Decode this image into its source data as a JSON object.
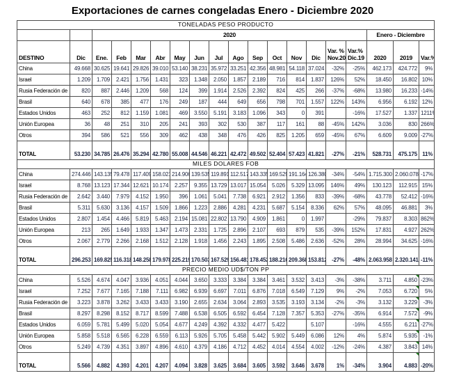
{
  "title": "Exportaciones de carnes congeladas Enero - Diciembre 2020",
  "colors": {
    "border": "#4d4d4d",
    "value_text": "#1c2440",
    "header_text": "#000000",
    "comment_marker_green": "#1e7a1e",
    "background": "#ffffff"
  },
  "table": {
    "group_header_2020": "2020",
    "group_header_enero_dic": "Enero - Diciembre",
    "columns": [
      "DESTINO",
      "Dic",
      "Ene.",
      "Feb",
      "Mar",
      "Abr",
      "May",
      "Jun",
      "Jul",
      "Ago",
      "Sep",
      "Oct",
      "Nov",
      "Dic",
      [
        "Var. %",
        "Nov.20"
      ],
      [
        "Var.%",
        "Dic.19"
      ],
      "2020",
      "2019",
      "Var.%"
    ],
    "sections": [
      {
        "title": "TONELADAS PESO PRODUCTO",
        "comment_markers_2019": false,
        "rows": [
          [
            "China",
            "49.668",
            "30.625",
            "19.641",
            "29.826",
            "39.010",
            "53.140",
            "38.231",
            "35.972",
            "33.251",
            "42.356",
            "48.981",
            "54.118",
            "37.024",
            "-32%",
            "-25%",
            "462.173",
            "424.772",
            "9%"
          ],
          [
            "Israel",
            "1.209",
            "1.709",
            "2.421",
            "1.756",
            "1.431",
            "323",
            "1.348",
            "2.050",
            "1.857",
            "2.189",
            "716",
            "814",
            "1.837",
            "126%",
            "52%",
            "18.450",
            "16.802",
            "10%"
          ],
          [
            "Rusia Federación de",
            "820",
            "887",
            "2.446",
            "1.209",
            "568",
            "124",
            "399",
            "1.914",
            "2.526",
            "2.392",
            "824",
            "425",
            "266",
            "-37%",
            "-68%",
            "13.980",
            "16.233",
            "-14%"
          ],
          [
            "Brasil",
            "640",
            "678",
            "385",
            "477",
            "176",
            "249",
            "187",
            "444",
            "649",
            "656",
            "798",
            "701",
            "1.557",
            "122%",
            "143%",
            "6.956",
            "6.192",
            "12%"
          ],
          [
            "Estados Unidos",
            "463",
            "252",
            "812",
            "1.159",
            "1.081",
            "469",
            "3.550",
            "5.191",
            "3.183",
            "1.096",
            "343",
            "0",
            "391",
            "",
            "-16%",
            "17.527",
            "1.337",
            "1211%"
          ],
          [
            "Unión Europea",
            "36",
            "48",
            "251",
            "310",
            "205",
            "241",
            "393",
            "302",
            "530",
            "387",
            "117",
            "161",
            "88",
            "-45%",
            "142%",
            "3.036",
            "830",
            "266%"
          ],
          [
            "Otros",
            "394",
            "586",
            "521",
            "556",
            "309",
            "462",
            "438",
            "348",
            "476",
            "426",
            "825",
            "1.205",
            "659",
            "-45%",
            "67%",
            "6.609",
            "9.009",
            "-27%"
          ]
        ],
        "total": [
          "TOTAL",
          "53.230",
          "34.785",
          "26.476",
          "35.294",
          "42.780",
          "55.008",
          "44.546",
          "46.221",
          "42.472",
          "49.502",
          "52.404",
          "57.423",
          "41.821",
          "-27%",
          "-21%",
          "528.731",
          "475.175",
          "11%"
        ]
      },
      {
        "title": "MILES DOLARES FOB",
        "comment_markers_2019": false,
        "rows": [
          [
            "China",
            "274.446",
            "143.135",
            "79.478",
            "117.409",
            "158.021",
            "214.906",
            "139.535",
            "119.891",
            "112.517",
            "143.335",
            "169.529",
            "191.164",
            "126.380",
            "-34%",
            "-54%",
            "1.715.300",
            "2.060.078",
            "-17%"
          ],
          [
            "Israel",
            "8.768",
            "13.123",
            "17.344",
            "12.621",
            "10.174",
            "2.257",
            "9.355",
            "13.729",
            "13.017",
            "15.054",
            "5.026",
            "5.329",
            "13.095",
            "146%",
            "49%",
            "130.123",
            "112.915",
            "15%"
          ],
          [
            "Rusia Federación de",
            "2.642",
            "3.440",
            "7.979",
            "4.152",
            "1.950",
            "396",
            "1.061",
            "5.041",
            "7.738",
            "6.921",
            "2.912",
            "1.356",
            "833",
            "-39%",
            "-68%",
            "43.778",
            "52.412",
            "-16%"
          ],
          [
            "Brasil",
            "5.311",
            "5.630",
            "3.136",
            "4.157",
            "1.509",
            "1.866",
            "1.223",
            "2.886",
            "4.281",
            "4.231",
            "5.687",
            "5.154",
            "8.336",
            "62%",
            "57%",
            "48.095",
            "46.881",
            "3%"
          ],
          [
            "Estados Unidos",
            "2.807",
            "1.454",
            "4.466",
            "5.819",
            "5.463",
            "2.194",
            "15.081",
            "22.802",
            "13.790",
            "4.909",
            "1.861",
            "0",
            "1.997",
            "",
            "-29%",
            "79.837",
            "8.303",
            "862%"
          ],
          [
            "Unión Europea",
            "213",
            "265",
            "1.649",
            "1.933",
            "1.347",
            "1.473",
            "2.331",
            "1.725",
            "2.896",
            "2.107",
            "693",
            "879",
            "535",
            "-39%",
            "152%",
            "17.831",
            "4.927",
            "262%"
          ],
          [
            "Otros",
            "2.067",
            "2.779",
            "2.266",
            "2.168",
            "1.512",
            "2.128",
            "1.918",
            "1.456",
            "2.243",
            "1.895",
            "2.508",
            "5.486",
            "2.636",
            "-52%",
            "28%",
            "28.994",
            "34.625",
            "-16%"
          ]
        ],
        "total": [
          "TOTAL",
          "296.253",
          "169.825",
          "116.318",
          "148.258",
          "179.978",
          "225.219",
          "170.503",
          "167.529",
          "156.481",
          "178.452",
          "188.216",
          "209.368",
          "153.812",
          "-27%",
          "-48%",
          "2.063.958",
          "2.320.141",
          "-11%"
        ]
      },
      {
        "title": "PRECIO MEDIO UD$/TON PP",
        "comment_markers_2019": true,
        "rows": [
          [
            "China",
            "5.526",
            "4.674",
            "4.047",
            "3.936",
            "4.051",
            "4.044",
            "3.650",
            "3.333",
            "3.384",
            "3.384",
            "3.461",
            "3.532",
            "3.413",
            "-3%",
            "-38%",
            "3.711",
            "4.850",
            "-23%"
          ],
          [
            "Israel",
            "7.252",
            "7.677",
            "7.165",
            "7.188",
            "7.111",
            "6.982",
            "6.939",
            "6.697",
            "7.011",
            "6.876",
            "7.018",
            "6.549",
            "7.129",
            "9%",
            "-2%",
            "7.053",
            "6.720",
            "5%"
          ],
          [
            "Rusia Federación de",
            "3.223",
            "3.878",
            "3.262",
            "3.433",
            "3.433",
            "3.190",
            "2.655",
            "2.634",
            "3.064",
            "2.893",
            "3.535",
            "3.193",
            "3.134",
            "-2%",
            "-3%",
            "3.132",
            "3.229",
            "-3%"
          ],
          [
            "Brasil",
            "8.297",
            "8.298",
            "8.152",
            "8.717",
            "8.599",
            "7.488",
            "6.538",
            "6.505",
            "6.592",
            "6.454",
            "7.128",
            "7.357",
            "5.353",
            "-27%",
            "-35%",
            "6.914",
            "7.572",
            "-9%"
          ],
          [
            "Estados Unidos",
            "6.059",
            "5.781",
            "5.499",
            "5.020",
            "5.054",
            "4.677",
            "4.249",
            "4.392",
            "4.332",
            "4.477",
            "5.422",
            "",
            "5.107",
            "",
            "-16%",
            "4.555",
            "6.211",
            "-27%"
          ],
          [
            "Unión Europea",
            "5.858",
            "5.518",
            "6.565",
            "6.228",
            "6.559",
            "6.113",
            "5.926",
            "5.705",
            "5.458",
            "5.442",
            "5.902",
            "5.449",
            "6.086",
            "12%",
            "4%",
            "5.874",
            "5.935",
            "-1%"
          ],
          [
            "Otros",
            "5.249",
            "4.739",
            "4.351",
            "3.897",
            "4.896",
            "4.610",
            "4.379",
            "4.186",
            "4.712",
            "4.452",
            "4.014",
            "4.554",
            "4.002",
            "-12%",
            "-24%",
            "4.387",
            "3.843",
            "14%"
          ]
        ],
        "total": [
          "TOTAL",
          "5.566",
          "4.882",
          "4.393",
          "4.201",
          "4.207",
          "4.094",
          "3.828",
          "3.625",
          "3.684",
          "3.605",
          "3.592",
          "3.646",
          "3.678",
          "1%",
          "-34%",
          "3.904",
          "4.883",
          "-20%"
        ]
      }
    ]
  }
}
